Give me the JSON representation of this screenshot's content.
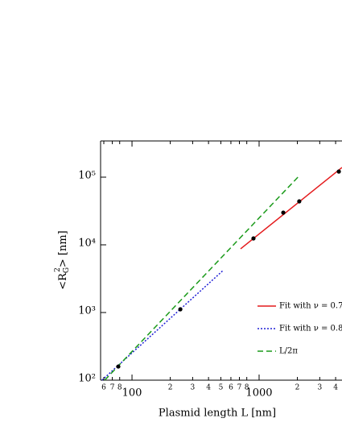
{
  "chart_data": {
    "type": "line",
    "xlabel": "Plasmid length L [nm]",
    "ylabel": {
      "base": "<R",
      "sub": "G",
      "sup": "2",
      "rest": "> [nm]"
    },
    "xlog": true,
    "ylog": true,
    "xlim": [
      56.6,
      4490
    ],
    "ylim": [
      100,
      343000
    ],
    "xticks": [
      {
        "value": 60,
        "label": "6"
      },
      {
        "value": 70,
        "label": "7"
      },
      {
        "value": 80,
        "label": "8"
      },
      100,
      {
        "value": 200,
        "label": "2"
      },
      {
        "value": 300,
        "label": "3"
      },
      {
        "value": 400,
        "label": "4"
      },
      {
        "value": 500,
        "label": "5"
      },
      {
        "value": 600,
        "label": "6"
      },
      {
        "value": 700,
        "label": "7"
      },
      {
        "value": 800,
        "label": "8"
      },
      1000,
      {
        "value": 2000,
        "label": "2"
      },
      {
        "value": 3000,
        "label": "3"
      },
      {
        "value": 4000,
        "label": "4"
      }
    ],
    "yticks": [
      {
        "value": 100,
        "label": "10²"
      },
      {
        "value": 1000,
        "label": "10³"
      },
      {
        "value": 10000,
        "label": "10⁴"
      },
      {
        "value": 100000,
        "label": "10⁵"
      }
    ],
    "points": {
      "color": "#000000",
      "x": [
        78,
        240,
        903,
        1550,
        2070,
        4240
      ],
      "values": [
        159,
        1115,
        12450,
        29900,
        43900,
        121000
      ]
    },
    "series": [
      {
        "name": "Fit with ν = 0.7",
        "color": "#e41a1c",
        "dash": "",
        "x": [
          715,
          4490
        ],
        "values": [
          8720,
          139000
        ]
      },
      {
        "name": "Fit with ν = 0.8",
        "color": "#1f1fd6",
        "dash": "2,2",
        "x": [
          58,
          519
        ],
        "values": [
          100,
          4160
        ]
      },
      {
        "name": "L/2π",
        "color": "#1a9a1a",
        "dash": "7,4",
        "x": [
          61,
          2070
        ],
        "values": [
          100,
          105000
        ]
      }
    ]
  }
}
